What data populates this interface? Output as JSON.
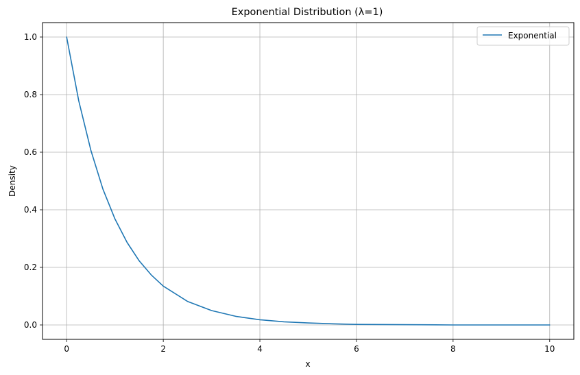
{
  "chart_data": {
    "type": "line",
    "title": "Exponential Distribution (λ=1)",
    "xlabel": "x",
    "ylabel": "Density",
    "xlim": [
      -0.5,
      10.5
    ],
    "ylim": [
      -0.05,
      1.05
    ],
    "xticks": [
      0,
      2,
      4,
      6,
      8,
      10
    ],
    "xtick_labels": [
      "0",
      "2",
      "4",
      "6",
      "8",
      "10"
    ],
    "yticks": [
      0.0,
      0.2,
      0.4,
      0.6,
      0.8,
      1.0
    ],
    "ytick_labels": [
      "0.0",
      "0.2",
      "0.4",
      "0.6",
      "0.8",
      "1.0"
    ],
    "grid": true,
    "legend": {
      "location": "top-right"
    },
    "series": [
      {
        "name": "Exponential",
        "color": "#1f77b4",
        "x": [
          0,
          0.25,
          0.5,
          0.75,
          1,
          1.25,
          1.5,
          1.75,
          2,
          2.5,
          3,
          3.5,
          4,
          4.5,
          5,
          5.5,
          6,
          7,
          8,
          9,
          10
        ],
        "y": [
          1.0,
          0.779,
          0.607,
          0.472,
          0.368,
          0.287,
          0.223,
          0.174,
          0.135,
          0.082,
          0.05,
          0.03,
          0.018,
          0.011,
          0.007,
          0.004,
          0.002,
          0.001,
          0.0,
          0.0,
          0.0
        ]
      }
    ]
  }
}
